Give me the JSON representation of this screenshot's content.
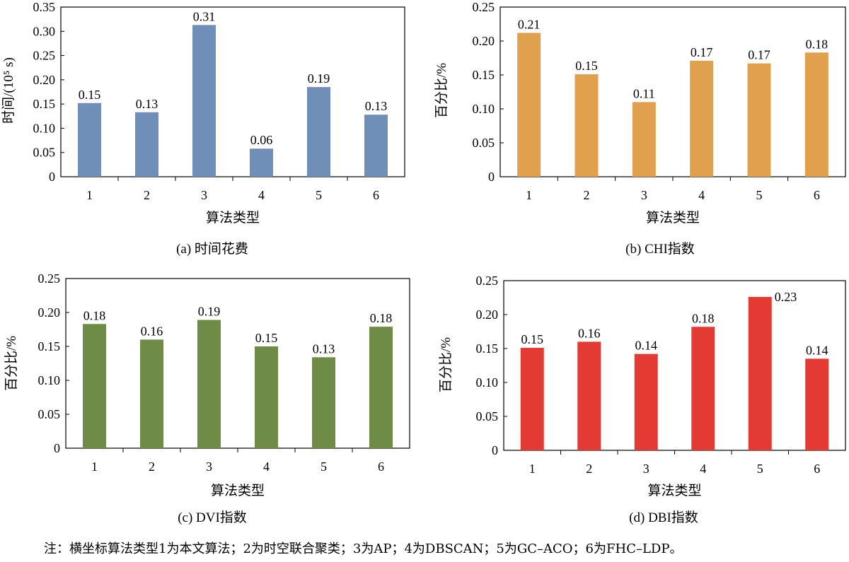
{
  "chart_data": [
    {
      "type": "bar",
      "ylabel": "时间/(10⁵ s)",
      "xlabel": "算法类型",
      "caption": "(a) 时间花费",
      "color": "#6f8fb9",
      "ylim": [
        0,
        0.35
      ],
      "yticks": [
        "0",
        "0.05",
        "0.10",
        "0.15",
        "0.20",
        "0.25",
        "0.30",
        "0.35"
      ],
      "categories": [
        "1",
        "2",
        "3",
        "4",
        "5",
        "6"
      ],
      "values": [
        0.152,
        0.133,
        0.313,
        0.058,
        0.185,
        0.128
      ],
      "labels": [
        "0.15",
        "0.13",
        "0.31",
        "0.06",
        "0.19",
        "0.13"
      ]
    },
    {
      "type": "bar",
      "ylabel": "百分比/%",
      "xlabel": "算法类型",
      "caption": "(b) CHI指数",
      "color": "#e0a04e",
      "ylim": [
        0,
        0.25
      ],
      "yticks": [
        "0",
        "0.05",
        "0.10",
        "0.15",
        "0.20",
        "0.25"
      ],
      "categories": [
        "1",
        "2",
        "3",
        "4",
        "5",
        "6"
      ],
      "values": [
        0.212,
        0.151,
        0.11,
        0.171,
        0.167,
        0.183
      ],
      "labels": [
        "0.21",
        "0.15",
        "0.11",
        "0.17",
        "0.17",
        "0.18"
      ]
    },
    {
      "type": "bar",
      "ylabel": "百分比/%",
      "xlabel": "算法类型",
      "caption": "(c) DVI指数",
      "color": "#6e8c45",
      "ylim": [
        0,
        0.25
      ],
      "yticks": [
        "0",
        "0.05",
        "0.10",
        "0.15",
        "0.20",
        "0.25"
      ],
      "categories": [
        "1",
        "2",
        "3",
        "4",
        "5",
        "6"
      ],
      "values": [
        0.183,
        0.16,
        0.189,
        0.15,
        0.134,
        0.179
      ],
      "labels": [
        "0.18",
        "0.16",
        "0.19",
        "0.15",
        "0.13",
        "0.18"
      ]
    },
    {
      "type": "bar",
      "ylabel": "百分比/%",
      "xlabel": "算法类型",
      "caption": "(d) DBI指数",
      "color": "#e33b33",
      "ylim": [
        0,
        0.25
      ],
      "yticks": [
        "0",
        "0.05",
        "0.10",
        "0.15",
        "0.20",
        "0.25"
      ],
      "categories": [
        "1",
        "2",
        "3",
        "4",
        "5",
        "6"
      ],
      "values": [
        0.151,
        0.16,
        0.142,
        0.182,
        0.226,
        0.135
      ],
      "labels": [
        "0.15",
        "0.16",
        "0.14",
        "0.18",
        "0.23",
        "0.14"
      ]
    }
  ],
  "note": "注：横坐标算法类型1为本文算法；2为时空联合聚类；3为AP；4为DBSCAN；5为GC–ACO；6为FHC–LDP。"
}
